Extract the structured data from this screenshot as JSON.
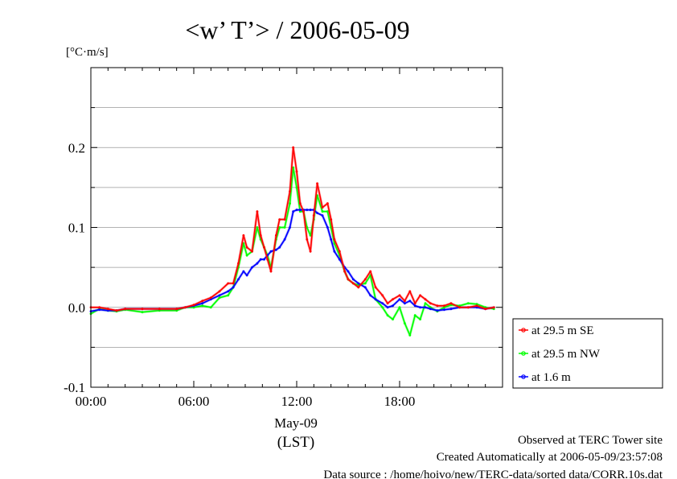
{
  "chart_data": {
    "type": "line",
    "title": "<w’ T’> / 2006-05-09",
    "ylabel": "[°C·m/s]",
    "xlabel_date": "May-09",
    "xlabel_unit": "(LST)",
    "xlim": [
      0,
      24
    ],
    "ylim": [
      -0.1,
      0.3
    ],
    "yticks": [
      -0.1,
      0.0,
      0.1,
      0.2
    ],
    "ytick_labels": [
      "-0.1",
      "0.0",
      "0.1",
      "0.2"
    ],
    "xticks": [
      0,
      6,
      12,
      18
    ],
    "xtick_labels": [
      "00:00",
      "06:00",
      "12:00",
      "18:00"
    ],
    "grid": true,
    "legend_position": "right",
    "series": [
      {
        "name": "at 29.5 m SE",
        "color": "#ff0000",
        "x": [
          0,
          0.5,
          1,
          1.5,
          2,
          3,
          4,
          5,
          5.5,
          6,
          6.5,
          7,
          7.5,
          8,
          8.3,
          8.6,
          8.9,
          9.1,
          9.4,
          9.7,
          9.9,
          10.1,
          10.3,
          10.5,
          10.8,
          11,
          11.3,
          11.6,
          11.8,
          12,
          12.2,
          12.4,
          12.6,
          12.8,
          13,
          13.2,
          13.5,
          13.8,
          14,
          14.2,
          14.5,
          14.8,
          15,
          15.3,
          15.6,
          16,
          16.3,
          16.6,
          17,
          17.3,
          17.6,
          18,
          18.3,
          18.6,
          18.9,
          19.2,
          19.5,
          19.8,
          20.2,
          20.6,
          21,
          21.5,
          22,
          22.5,
          23,
          23.5
        ],
        "y": [
          0.0,
          0.0,
          -0.002,
          -0.004,
          -0.002,
          -0.002,
          -0.002,
          -0.002,
          0.0,
          0.003,
          0.008,
          0.012,
          0.02,
          0.03,
          0.03,
          0.055,
          0.09,
          0.075,
          0.07,
          0.12,
          0.09,
          0.075,
          0.06,
          0.045,
          0.09,
          0.11,
          0.11,
          0.145,
          0.2,
          0.17,
          0.13,
          0.12,
          0.085,
          0.07,
          0.115,
          0.155,
          0.125,
          0.13,
          0.11,
          0.085,
          0.07,
          0.045,
          0.035,
          0.03,
          0.025,
          0.035,
          0.045,
          0.025,
          0.015,
          0.005,
          0.01,
          0.015,
          0.008,
          0.02,
          0.005,
          0.015,
          0.01,
          0.005,
          0.002,
          0.002,
          0.005,
          0.0,
          0.0,
          0.002,
          -0.002,
          0.0
        ]
      },
      {
        "name": "at 29.5 m NW",
        "color": "#00ff00",
        "x": [
          0,
          0.5,
          1,
          1.5,
          2,
          3,
          4,
          5,
          5.5,
          6,
          6.5,
          7,
          7.5,
          8,
          8.3,
          8.6,
          8.9,
          9.1,
          9.4,
          9.7,
          9.9,
          10.1,
          10.3,
          10.5,
          10.8,
          11,
          11.3,
          11.6,
          11.8,
          12,
          12.2,
          12.4,
          12.6,
          12.8,
          13,
          13.2,
          13.5,
          13.8,
          14,
          14.2,
          14.5,
          14.8,
          15,
          15.3,
          15.6,
          16,
          16.3,
          16.6,
          17,
          17.3,
          17.6,
          18,
          18.3,
          18.6,
          18.9,
          19.2,
          19.5,
          19.8,
          20.2,
          20.6,
          21,
          21.5,
          22,
          22.5,
          23,
          23.5
        ],
        "y": [
          -0.008,
          -0.002,
          -0.004,
          -0.005,
          -0.003,
          -0.006,
          -0.004,
          -0.004,
          0.0,
          0.0,
          0.002,
          0.0,
          0.012,
          0.015,
          0.025,
          0.05,
          0.08,
          0.065,
          0.07,
          0.1,
          0.085,
          0.075,
          0.065,
          0.05,
          0.085,
          0.1,
          0.1,
          0.13,
          0.175,
          0.15,
          0.12,
          0.12,
          0.1,
          0.09,
          0.11,
          0.14,
          0.12,
          0.12,
          0.1,
          0.08,
          0.065,
          0.045,
          0.035,
          0.03,
          0.028,
          0.03,
          0.04,
          0.01,
          0.0,
          -0.01,
          -0.015,
          0.0,
          -0.02,
          -0.035,
          -0.01,
          -0.015,
          0.005,
          0.0,
          -0.005,
          0.0,
          0.003,
          0.002,
          0.005,
          0.004,
          0.0,
          -0.002
        ]
      },
      {
        "name": "at 1.6 m",
        "color": "#0000ff",
        "x": [
          0,
          0.5,
          1,
          1.5,
          2,
          3,
          4,
          5,
          5.5,
          6,
          6.5,
          7,
          7.5,
          8,
          8.3,
          8.6,
          8.9,
          9.1,
          9.4,
          9.7,
          9.9,
          10.1,
          10.3,
          10.5,
          10.8,
          11,
          11.3,
          11.6,
          11.8,
          12,
          12.2,
          12.4,
          12.6,
          12.8,
          13,
          13.2,
          13.5,
          13.8,
          14,
          14.2,
          14.5,
          14.8,
          15,
          15.3,
          15.6,
          16,
          16.3,
          16.6,
          17,
          17.3,
          17.6,
          18,
          18.3,
          18.6,
          18.9,
          19.2,
          19.5,
          19.8,
          20.2,
          20.6,
          21,
          21.5,
          22,
          22.5,
          23,
          23.5
        ],
        "y": [
          -0.005,
          -0.003,
          -0.004,
          -0.004,
          -0.002,
          -0.002,
          -0.002,
          -0.002,
          0.0,
          0.002,
          0.005,
          0.01,
          0.015,
          0.02,
          0.025,
          0.035,
          0.045,
          0.04,
          0.05,
          0.055,
          0.06,
          0.06,
          0.065,
          0.07,
          0.072,
          0.075,
          0.085,
          0.1,
          0.12,
          0.122,
          0.122,
          0.122,
          0.122,
          0.122,
          0.122,
          0.118,
          0.115,
          0.1,
          0.085,
          0.07,
          0.06,
          0.05,
          0.045,
          0.035,
          0.03,
          0.025,
          0.015,
          0.01,
          0.005,
          0.0,
          0.002,
          0.01,
          0.005,
          0.008,
          0.002,
          0.0,
          0.0,
          -0.002,
          -0.004,
          -0.003,
          -0.002,
          0.0,
          0.0,
          0.0,
          -0.002,
          0.0
        ]
      }
    ],
    "footer": [
      "Observed at TERC Tower site",
      "Created Automatically at 2006-05-09/23:57:08",
      "Data source : /home/hoivo/new/TERC-data/sorted data/CORR.10s.dat"
    ]
  }
}
